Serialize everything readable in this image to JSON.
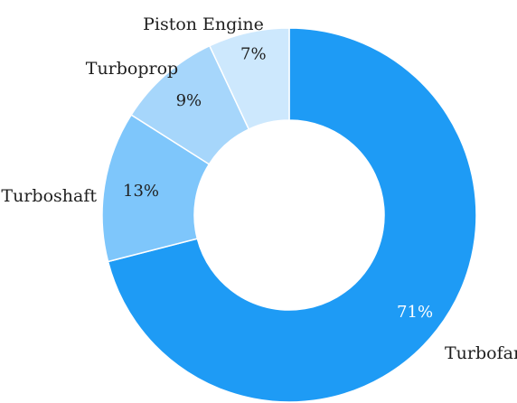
{
  "chart_data": {
    "type": "pie",
    "donut": true,
    "slices": [
      {
        "label": "Turbofan",
        "value": 71,
        "value_label": "71%",
        "color": "#1e9bf5",
        "value_label_color": "#ffffff"
      },
      {
        "label": "Turboshaft",
        "value": 13,
        "value_label": "13%",
        "color": "#7ec6fb",
        "value_label_color": "#1f1f1f"
      },
      {
        "label": "Turboprop",
        "value": 9,
        "value_label": "9%",
        "color": "#a6d6fb",
        "value_label_color": "#1f1f1f"
      },
      {
        "label": "Piston Engine",
        "value": 7,
        "value_label": "7%",
        "color": "#cde8fd",
        "value_label_color": "#1f1f1f"
      }
    ],
    "start": "top, clockwise",
    "legend": "none"
  }
}
